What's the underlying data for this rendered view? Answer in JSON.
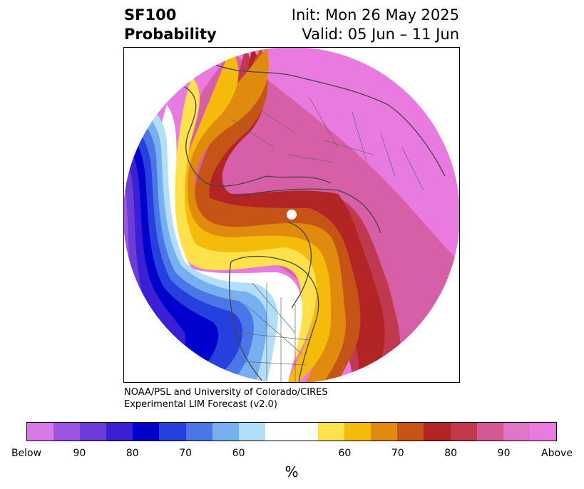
{
  "title": {
    "line1_left": "SF100",
    "line2_left": "Probability",
    "line1_right": "Init: Mon 26 May 2025",
    "line2_right": "Valid: 05 Jun – 11 Jun"
  },
  "credit": {
    "line1": "NOAA/PSL and University of Colorado/CIRES",
    "line2": "Experimental LIM Forecast (v2.0)"
  },
  "colorbar": {
    "colors": [
      "#d879e8",
      "#9b55e0",
      "#6a3ddb",
      "#3b1fd4",
      "#0000cc",
      "#2540dd",
      "#4b76e8",
      "#76b0f2",
      "#b3def9",
      "#ffffff",
      "#ffffff",
      "#fde24c",
      "#f5bb0b",
      "#e08b0e",
      "#c55416",
      "#b32424",
      "#c2394f",
      "#d05a91",
      "#e076c8",
      "#e87ae0"
    ],
    "tick_labels": [
      "Below",
      "90",
      "80",
      "70",
      "60",
      "60",
      "70",
      "80",
      "90",
      "Above"
    ],
    "unit_label": "%"
  },
  "map": {
    "categories_colors": {
      "above_95": "#e87ae0",
      "above_90": "#d65fa8",
      "above_85": "#c2394f",
      "above_80": "#b32424",
      "above_75": "#c55416",
      "above_70": "#e08b0e",
      "above_65": "#f5bb0b",
      "above_60": "#fde24c",
      "neutral": "#ffffff",
      "below_60": "#b3def9",
      "below_65": "#76b0f2",
      "below_70": "#4b76e8",
      "below_75": "#2540dd",
      "below_80": "#0000cc",
      "below_85": "#3b1fd4",
      "below_90": "#6a3ddb",
      "below_95": "#9b55e0"
    },
    "coastline_color": "#444444"
  }
}
